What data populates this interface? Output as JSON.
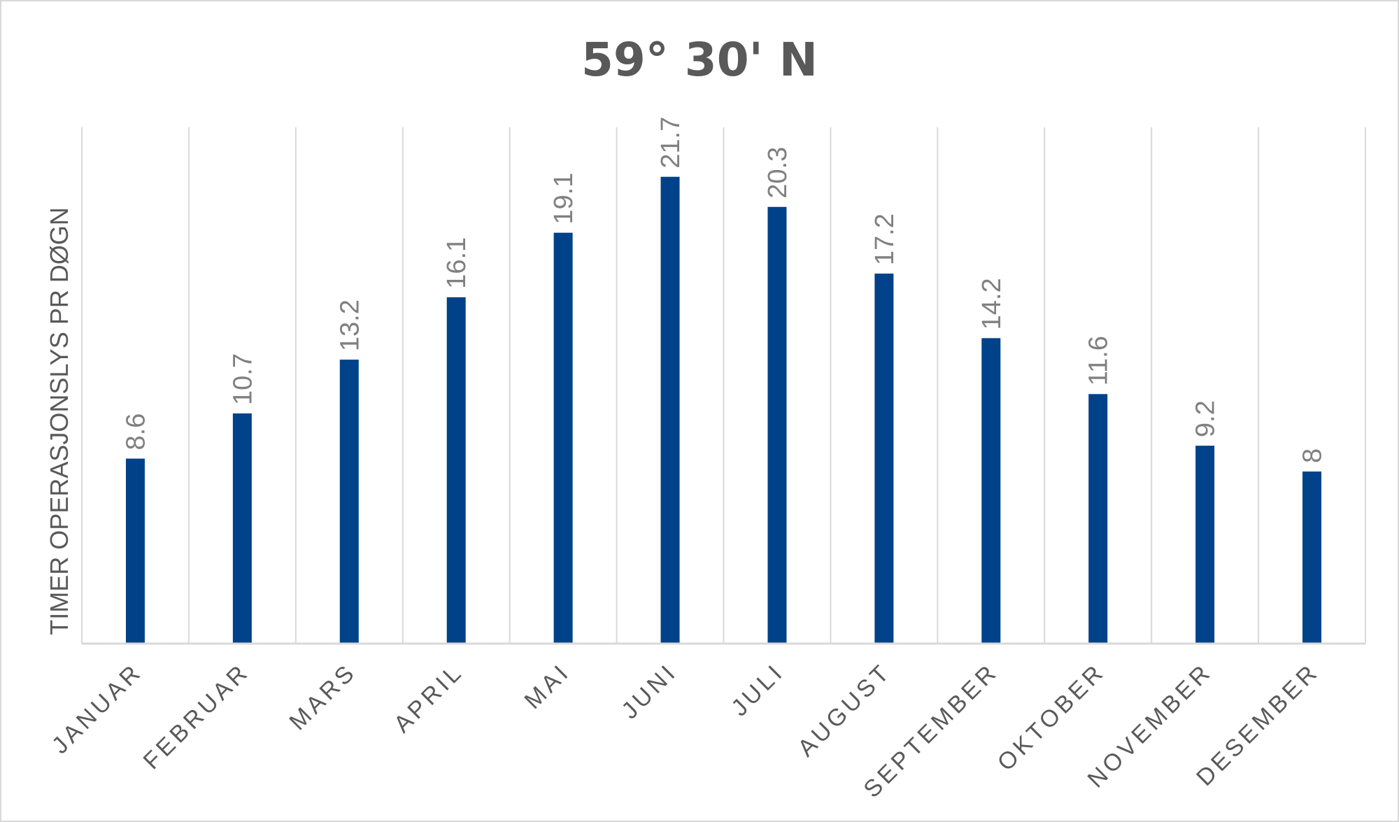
{
  "chart_data": {
    "type": "bar",
    "title": "59° 30' N",
    "xlabel": "",
    "ylabel": "TIMER OPERASJONSLYS PR DØGN",
    "categories": [
      "JANUAR",
      "FEBRUAR",
      "MARS",
      "APRIL",
      "MAI",
      "JUNI",
      "JULI",
      "AUGUST",
      "SEPTEMBER",
      "OKTOBER",
      "NOVEMBER",
      "DESEMBER"
    ],
    "values": [
      8.6,
      10.7,
      13.2,
      16.1,
      19.1,
      21.7,
      20.3,
      17.2,
      14.2,
      11.6,
      9.2,
      8
    ],
    "ylim": [
      0,
      24
    ],
    "grid": "vertical",
    "legend": "none",
    "data_labels": true,
    "bar_color": "#004289",
    "grid_color": "#d9d9d9",
    "text_color": "#595959",
    "label_color": "#808080"
  }
}
